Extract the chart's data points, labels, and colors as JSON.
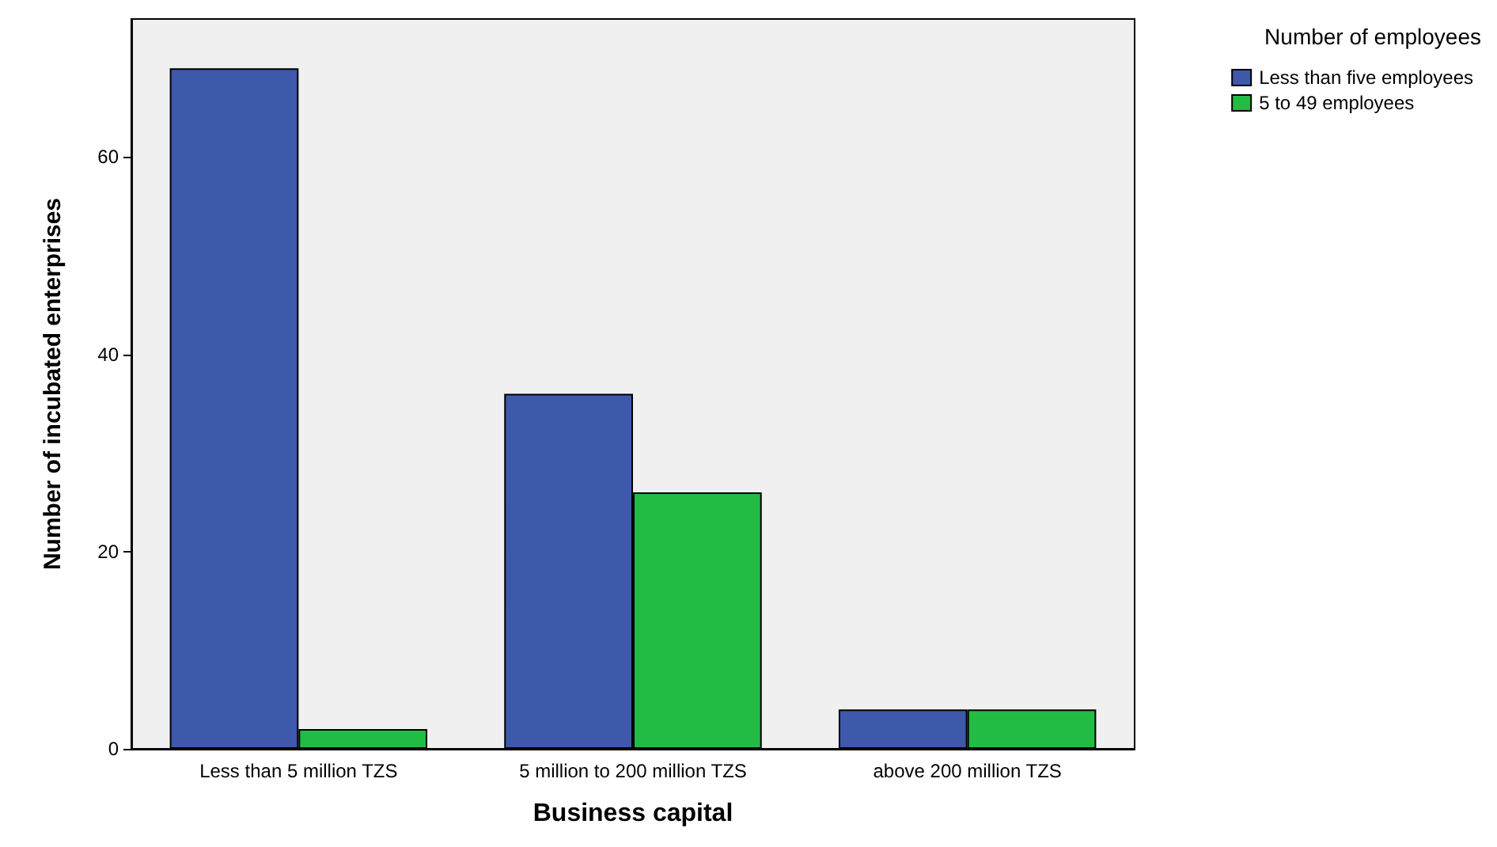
{
  "chart_data": {
    "type": "bar",
    "xlabel": "Business capital",
    "ylabel": "Number of incubated enterprises",
    "legend_title": "Number of employees",
    "categories": [
      "Less than 5 million TZS",
      "5 million to 200 million TZS",
      "above 200 million TZS"
    ],
    "series": [
      {
        "name": "Less than five employees",
        "color": "#3e58ac",
        "values": [
          69,
          36,
          4
        ]
      },
      {
        "name": "5 to 49 employees",
        "color": "#22bb44",
        "values": [
          2,
          26,
          4
        ]
      }
    ],
    "ylim": [
      0,
      74
    ],
    "yticks": [
      0,
      20,
      40,
      60
    ],
    "grid": false,
    "legend": "top right"
  }
}
